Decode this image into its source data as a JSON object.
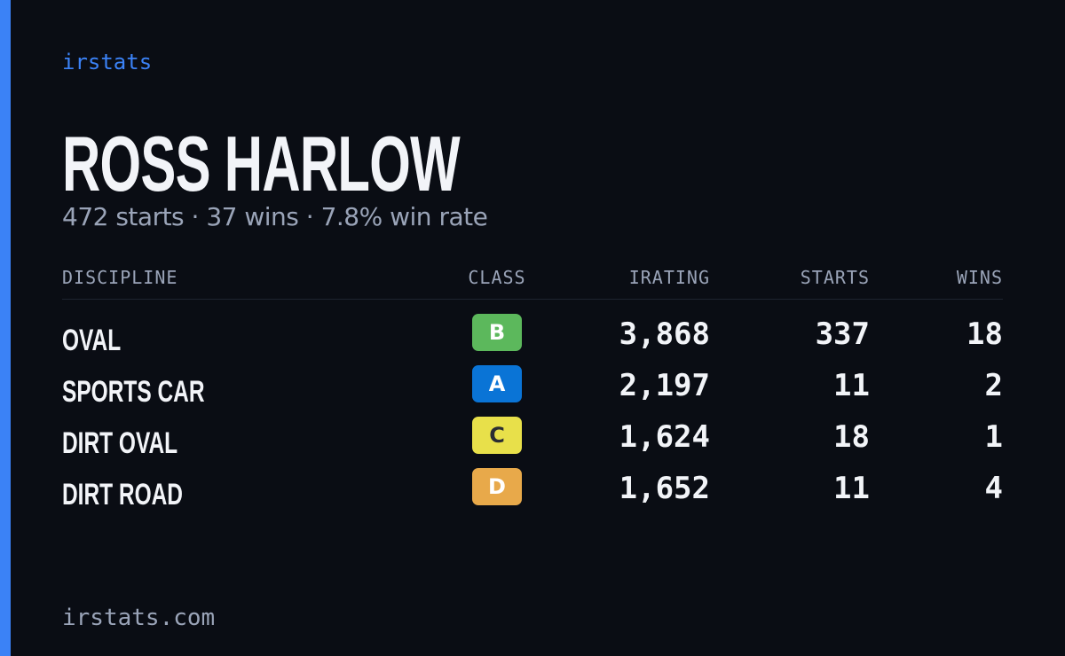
{
  "brand": "irstats",
  "name": "ROSS HARLOW",
  "summary": "472 starts · 37 wins · 7.8% win rate",
  "table": {
    "headers": [
      "DISCIPLINE",
      "CLASS",
      "IRATING",
      "STARTS",
      "WINS"
    ],
    "rows": [
      {
        "discipline": "OVAL",
        "class": "B",
        "class_color": "#5cb85c",
        "irating": "3,868",
        "starts": "337",
        "wins": "18"
      },
      {
        "discipline": "SPORTS CAR",
        "class": "A",
        "class_color": "#0a74d6",
        "irating": "2,197",
        "starts": "11",
        "wins": "2"
      },
      {
        "discipline": "DIRT OVAL",
        "class": "C",
        "class_color": "#e8e04a",
        "irating": "1,624",
        "starts": "18",
        "wins": "1"
      },
      {
        "discipline": "DIRT ROAD",
        "class": "D",
        "class_color": "#e8a94a",
        "irating": "1,652",
        "starts": "11",
        "wins": "4"
      }
    ]
  },
  "footer": "irstats.com"
}
